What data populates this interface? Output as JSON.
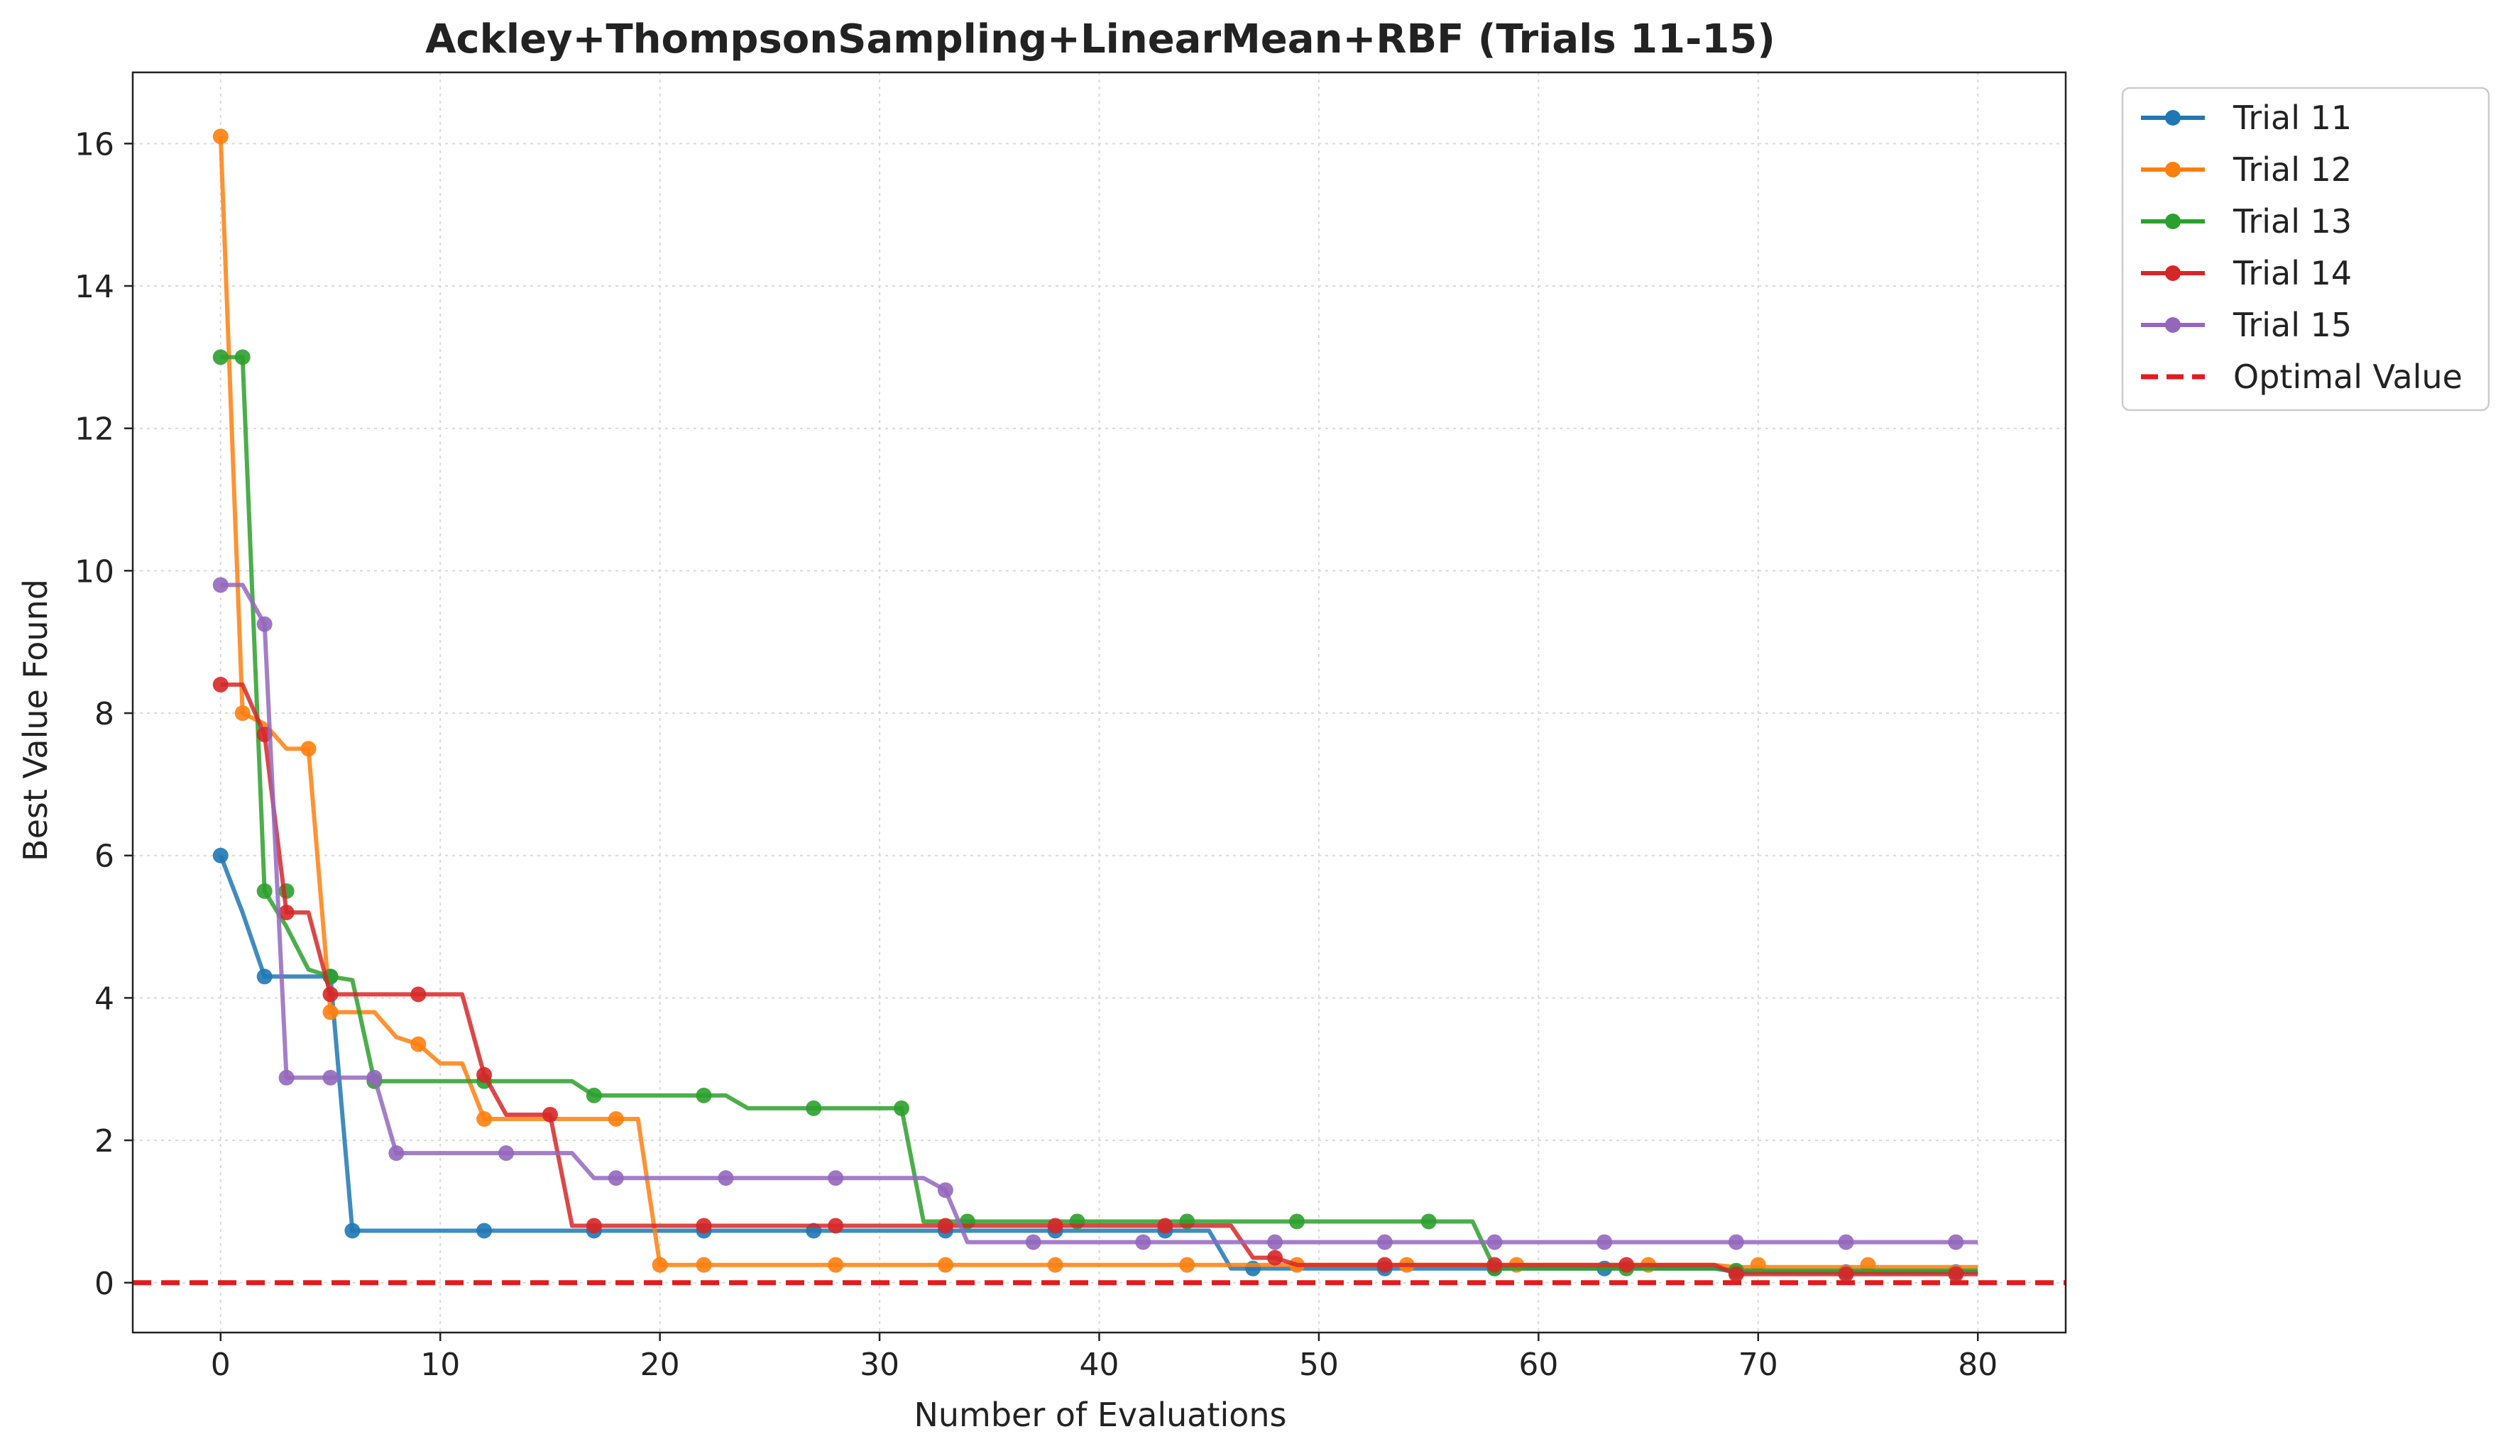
{
  "chart_data": {
    "type": "line",
    "title": "Ackley+ThompsonSampling+LinearMean+RBF (Trials 11-15)",
    "xlabel": "Number of Evaluations",
    "ylabel": "Best Value Found",
    "xlim": [
      -4,
      84
    ],
    "ylim": [
      -0.7,
      17
    ],
    "xticks": [
      0,
      10,
      20,
      30,
      40,
      50,
      60,
      70,
      80
    ],
    "yticks": [
      0,
      2,
      4,
      6,
      8,
      10,
      12,
      14,
      16
    ],
    "grid": true,
    "legend_position": "outside-top-right",
    "reference_line": {
      "name": "Optimal Value",
      "y": 0,
      "color": "#e41a1c",
      "style": "dashed"
    },
    "series": [
      {
        "name": "Trial 11",
        "color": "#1f77b4",
        "steps": [
          [
            0,
            6.0
          ],
          [
            1,
            5.2
          ],
          [
            2,
            4.3
          ],
          [
            6,
            0.73
          ],
          [
            46,
            0.2
          ],
          [
            69,
            0.15
          ]
        ],
        "markers": [
          [
            0,
            6.0
          ],
          [
            2,
            4.3
          ],
          [
            5,
            4.3
          ],
          [
            6,
            0.73
          ],
          [
            12,
            0.73
          ],
          [
            17,
            0.73
          ],
          [
            22,
            0.73
          ],
          [
            27,
            0.73
          ],
          [
            33,
            0.73
          ],
          [
            38,
            0.73
          ],
          [
            43,
            0.73
          ],
          [
            47,
            0.2
          ],
          [
            53,
            0.2
          ],
          [
            58,
            0.2
          ],
          [
            63,
            0.2
          ],
          [
            69,
            0.15
          ],
          [
            74,
            0.15
          ],
          [
            79,
            0.15
          ]
        ]
      },
      {
        "name": "Trial 12",
        "color": "#ff7f0e",
        "steps": [
          [
            0,
            16.1
          ],
          [
            1,
            8.0
          ],
          [
            2,
            7.85
          ],
          [
            3,
            7.5
          ],
          [
            5,
            3.8
          ],
          [
            8,
            3.45
          ],
          [
            9,
            3.35
          ],
          [
            10,
            3.08
          ],
          [
            12,
            2.3
          ],
          [
            20,
            0.25
          ],
          [
            69,
            0.22
          ]
        ],
        "markers": [
          [
            0,
            16.1
          ],
          [
            1,
            8.0
          ],
          [
            4,
            7.5
          ],
          [
            5,
            3.8
          ],
          [
            9,
            3.35
          ],
          [
            12,
            2.3
          ],
          [
            18,
            2.3
          ],
          [
            20,
            0.25
          ],
          [
            22,
            0.25
          ],
          [
            28,
            0.25
          ],
          [
            33,
            0.25
          ],
          [
            38,
            0.25
          ],
          [
            44,
            0.25
          ],
          [
            49,
            0.25
          ],
          [
            54,
            0.25
          ],
          [
            59,
            0.25
          ],
          [
            65,
            0.25
          ],
          [
            70,
            0.25
          ],
          [
            75,
            0.25
          ]
        ]
      },
      {
        "name": "Trial 13",
        "color": "#2ca02c",
        "steps": [
          [
            0,
            13.0
          ],
          [
            2,
            5.5
          ],
          [
            3,
            5.0
          ],
          [
            4,
            4.4
          ],
          [
            5,
            4.3
          ],
          [
            6,
            4.25
          ],
          [
            7,
            2.83
          ],
          [
            17,
            2.63
          ],
          [
            24,
            2.45
          ],
          [
            32,
            0.86
          ],
          [
            58,
            0.2
          ],
          [
            69,
            0.17
          ]
        ],
        "markers": [
          [
            0,
            13.0
          ],
          [
            1,
            13.0
          ],
          [
            2,
            5.5
          ],
          [
            3,
            5.5
          ],
          [
            5,
            4.3
          ],
          [
            7,
            2.83
          ],
          [
            12,
            2.83
          ],
          [
            17,
            2.63
          ],
          [
            22,
            2.63
          ],
          [
            27,
            2.45
          ],
          [
            31,
            2.45
          ],
          [
            34,
            0.86
          ],
          [
            39,
            0.86
          ],
          [
            44,
            0.86
          ],
          [
            49,
            0.86
          ],
          [
            55,
            0.86
          ],
          [
            58,
            0.2
          ],
          [
            64,
            0.2
          ],
          [
            69,
            0.17
          ]
        ]
      },
      {
        "name": "Trial 14",
        "color": "#d62728",
        "steps": [
          [
            0,
            8.4
          ],
          [
            2,
            7.7
          ],
          [
            3,
            5.2
          ],
          [
            5,
            4.05
          ],
          [
            12,
            2.92
          ],
          [
            13,
            2.36
          ],
          [
            16,
            0.8
          ],
          [
            47,
            0.35
          ],
          [
            49,
            0.25
          ],
          [
            69,
            0.12
          ]
        ],
        "markers": [
          [
            0,
            8.4
          ],
          [
            2,
            7.7
          ],
          [
            3,
            5.2
          ],
          [
            5,
            4.05
          ],
          [
            9,
            4.05
          ],
          [
            12,
            2.92
          ],
          [
            15,
            2.36
          ],
          [
            17,
            0.8
          ],
          [
            22,
            0.8
          ],
          [
            28,
            0.8
          ],
          [
            33,
            0.8
          ],
          [
            38,
            0.8
          ],
          [
            43,
            0.8
          ],
          [
            48,
            0.35
          ],
          [
            53,
            0.25
          ],
          [
            58,
            0.25
          ],
          [
            64,
            0.25
          ],
          [
            69,
            0.12
          ],
          [
            74,
            0.12
          ],
          [
            79,
            0.12
          ]
        ]
      },
      {
        "name": "Trial 15",
        "color": "#9467bd",
        "steps": [
          [
            0,
            9.8
          ],
          [
            2,
            9.25
          ],
          [
            3,
            2.88
          ],
          [
            8,
            1.82
          ],
          [
            17,
            1.47
          ],
          [
            33,
            1.3
          ],
          [
            34,
            0.57
          ]
        ],
        "markers": [
          [
            0,
            9.8
          ],
          [
            2,
            9.25
          ],
          [
            3,
            2.88
          ],
          [
            5,
            2.88
          ],
          [
            7,
            2.88
          ],
          [
            8,
            1.82
          ],
          [
            13,
            1.82
          ],
          [
            18,
            1.47
          ],
          [
            23,
            1.47
          ],
          [
            28,
            1.47
          ],
          [
            33,
            1.3
          ],
          [
            37,
            0.57
          ],
          [
            42,
            0.57
          ],
          [
            48,
            0.57
          ],
          [
            53,
            0.57
          ],
          [
            58,
            0.57
          ],
          [
            63,
            0.57
          ],
          [
            69,
            0.57
          ],
          [
            74,
            0.57
          ],
          [
            79,
            0.57
          ]
        ]
      }
    ]
  }
}
